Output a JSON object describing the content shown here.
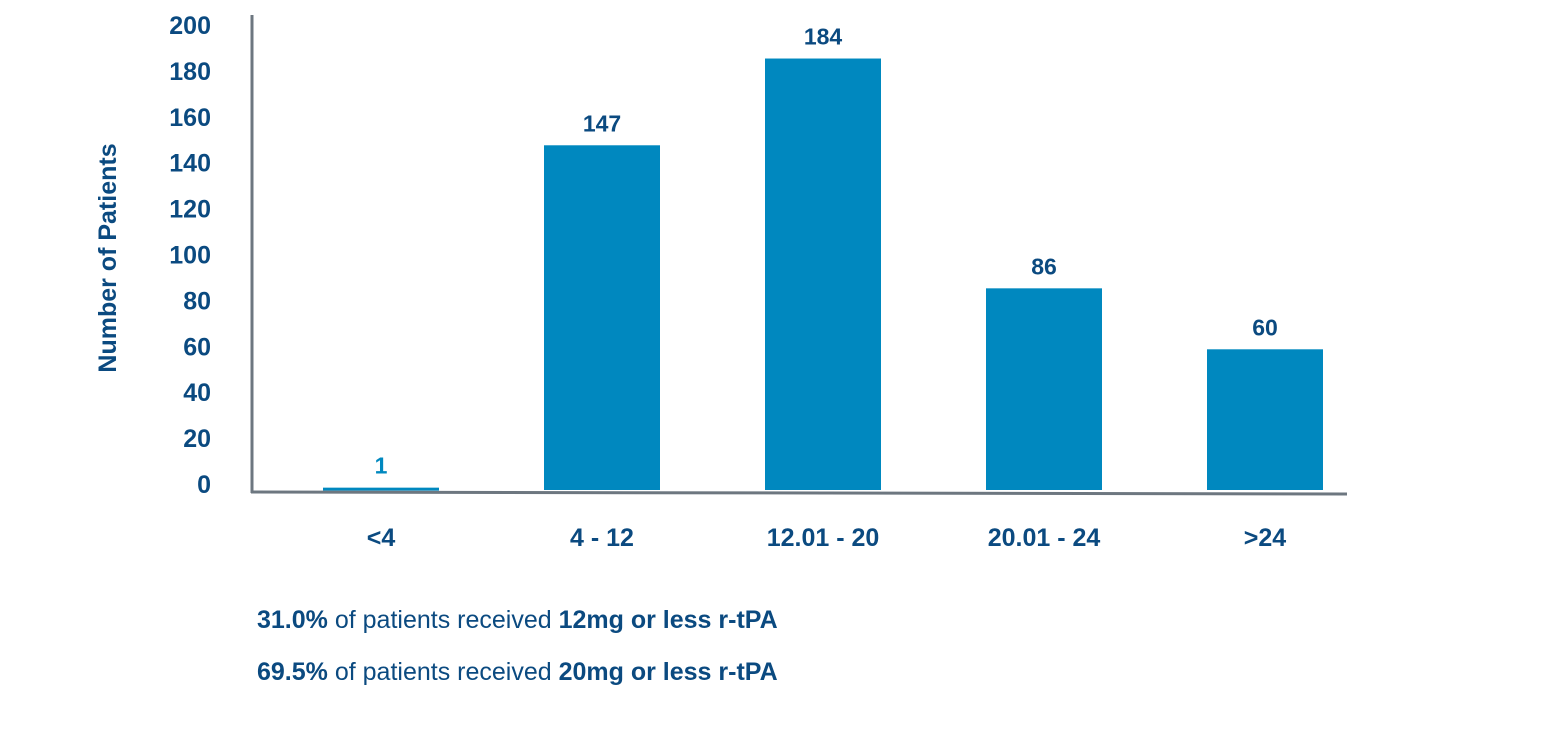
{
  "chart_data": {
    "type": "bar",
    "title": "",
    "xlabel": "",
    "ylabel": "Number of Patients",
    "categories": [
      "<4",
      "4 - 12",
      "12.01 - 20",
      "20.01 - 24",
      ">24"
    ],
    "values": [
      1,
      147,
      184,
      86,
      60
    ],
    "data_labels": [
      "1",
      "147",
      "184",
      "86",
      "60"
    ],
    "ylim": [
      0,
      200
    ],
    "yticks": [
      0,
      20,
      40,
      60,
      80,
      100,
      120,
      140,
      160,
      180,
      200
    ],
    "grid": false,
    "legend": "none",
    "colors": {
      "bar": "#0088bf",
      "text": "#0b4a80",
      "axis": "#6d7780"
    }
  },
  "notes": [
    {
      "bold_1": "31.0%",
      "text": " of patients received ",
      "bold_2": "12mg or less r-tPA"
    },
    {
      "bold_1": "69.5%",
      "text": " of patients received ",
      "bold_2": "20mg or less r-tPA"
    }
  ]
}
